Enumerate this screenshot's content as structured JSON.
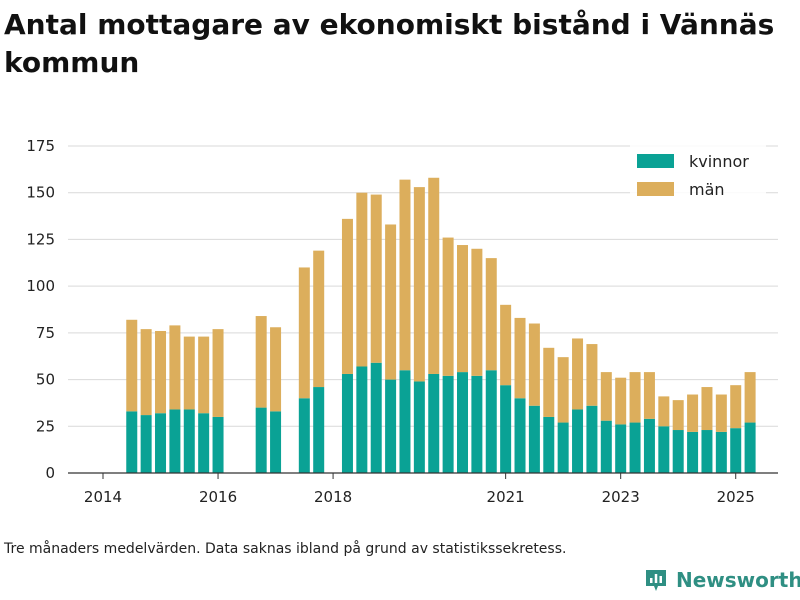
{
  "title": "Antal mottagare av ekonomiskt bistånd i Vännäs kommun",
  "footnote": "Tre månaders medelvärden. Data saknas ibland på grund av statistikssekretess.",
  "brand": {
    "name": "Newsworthy",
    "icon": "newsworthy-logo-icon"
  },
  "colors": {
    "kvinnor": "#0aa295",
    "man": "#dcae5c",
    "grid": "#d9d9d9",
    "axis": "#333333",
    "text": "#222222"
  },
  "chart_data": {
    "type": "bar",
    "stacked": true,
    "ylim": [
      0,
      175
    ],
    "yticks": [
      "0",
      "25",
      "50",
      "75",
      "100",
      "125",
      "150",
      "175"
    ],
    "xticks": [
      "2014",
      "2016",
      "2018",
      "2021",
      "2023",
      "2025"
    ],
    "xtick_positions": [
      0,
      8,
      16,
      28,
      36,
      44
    ],
    "legend": {
      "placement": "top-right",
      "items": [
        "kvinnor",
        "män"
      ]
    },
    "grid": true,
    "categories": [
      "2014 Q3",
      "2014 Q4",
      "2015 Q1",
      "2015 Q2",
      "2015 Q3",
      "2015 Q4",
      "2016 Q1",
      "2016 Q2",
      "2016 Q3",
      "2016 Q4",
      "2017 Q1",
      "2017 Q2",
      "2017 Q3",
      "2017 Q4",
      "2018 Q1",
      "2018 Q2",
      "2018 Q3",
      "2018 Q4",
      "2019 Q1",
      "2019 Q2",
      "2019 Q3",
      "2019 Q4",
      "2020 Q1",
      "2020 Q2",
      "2020 Q3",
      "2020 Q4",
      "2021 Q1",
      "2021 Q2",
      "2021 Q3",
      "2021 Q4",
      "2022 Q1",
      "2022 Q2",
      "2022 Q3",
      "2022 Q4",
      "2023 Q1",
      "2023 Q2",
      "2023 Q3",
      "2023 Q4",
      "2024 Q1",
      "2024 Q2",
      "2024 Q3",
      "2024 Q4",
      "2025 Q1",
      "2025 Q2",
      "2025 Q3",
      "2025 Q4",
      "2026 Q1",
      "2026 Q2"
    ],
    "series": [
      {
        "name": "kvinnor",
        "values": [
          null,
          null,
          33,
          31,
          32,
          34,
          34,
          32,
          30,
          null,
          null,
          35,
          33,
          null,
          40,
          46,
          null,
          53,
          57,
          59,
          50,
          55,
          49,
          53,
          52,
          54,
          52,
          55,
          47,
          40,
          36,
          30,
          27,
          34,
          36,
          28,
          26,
          27,
          29,
          25,
          23,
          22,
          23,
          22,
          24,
          27,
          null,
          null
        ]
      },
      {
        "name": "män",
        "values": [
          null,
          null,
          49,
          46,
          44,
          45,
          39,
          41,
          47,
          null,
          null,
          49,
          45,
          null,
          70,
          73,
          null,
          83,
          93,
          90,
          83,
          102,
          104,
          105,
          74,
          68,
          68,
          60,
          43,
          43,
          44,
          37,
          35,
          38,
          33,
          26,
          25,
          27,
          25,
          16,
          16,
          20,
          23,
          20,
          23,
          27,
          null,
          null
        ]
      }
    ]
  }
}
